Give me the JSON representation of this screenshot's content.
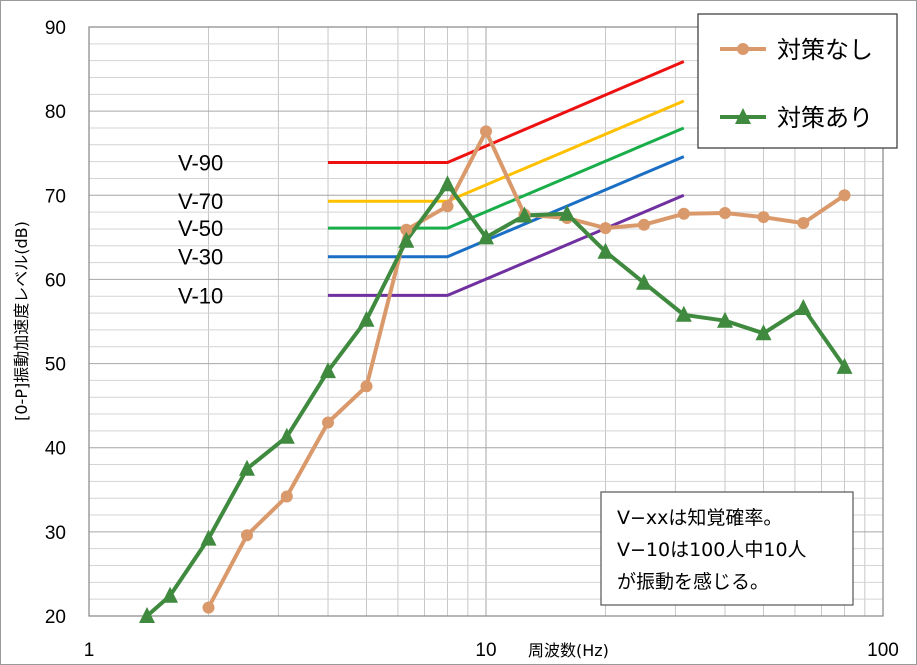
{
  "chart_data": {
    "type": "line",
    "x_scale": "log",
    "xlim": [
      1,
      100
    ],
    "ylim": [
      20,
      90
    ],
    "xlabel": "周波数(Hz)",
    "ylabel": "[0-P]振動加速度レベル(dB)",
    "x_ticks": [
      "1",
      "10",
      "100"
    ],
    "y_ticks": [
      "20",
      "30",
      "40",
      "50",
      "60",
      "70",
      "80",
      "90"
    ],
    "grid": true,
    "legend_position": "top-right",
    "series": [
      {
        "name": "対策なし",
        "color": "#d9996b",
        "marker": "circle",
        "x": [
          2,
          2.5,
          3.15,
          4,
          5,
          6.3,
          8,
          10,
          12.5,
          16,
          20,
          25,
          31.5,
          40,
          50,
          63,
          80
        ],
        "y": [
          21.0,
          29.6,
          34.2,
          43.0,
          47.3,
          65.9,
          68.7,
          77.6,
          67.7,
          67.3,
          66.1,
          66.5,
          67.8,
          67.9,
          67.4,
          66.7,
          70.0
        ]
      },
      {
        "name": "対策あり",
        "color": "#3f8a3f",
        "marker": "triangle",
        "x": [
          1.4,
          1.6,
          2,
          2.5,
          3.15,
          4,
          5,
          6.3,
          8,
          10,
          12.5,
          16,
          20,
          25,
          31.5,
          40,
          50,
          63,
          80
        ],
        "y": [
          20.0,
          22.4,
          29.2,
          37.5,
          41.3,
          49.1,
          55.2,
          64.6,
          71.3,
          65.0,
          67.6,
          67.8,
          63.3,
          59.6,
          55.8,
          55.1,
          53.6,
          56.6,
          49.6
        ]
      }
    ],
    "reference_lines": [
      {
        "label": "V-90",
        "color": "#ee1111",
        "x": [
          4,
          8,
          31.5
        ],
        "y": [
          73.9,
          73.9,
          85.9
        ]
      },
      {
        "label": "V-70",
        "color": "#ffc000",
        "x": [
          4,
          8,
          31.5
        ],
        "y": [
          69.3,
          69.3,
          81.2
        ]
      },
      {
        "label": "V-50",
        "color": "#1aae4a",
        "x": [
          4,
          8,
          31.5
        ],
        "y": [
          66.1,
          66.1,
          78.0
        ]
      },
      {
        "label": "V-30",
        "color": "#1a6fc4",
        "x": [
          4,
          8,
          31.5
        ],
        "y": [
          62.7,
          62.7,
          74.6
        ]
      },
      {
        "label": "V-10",
        "color": "#7030a0",
        "x": [
          4,
          8,
          31.5
        ],
        "y": [
          58.1,
          58.1,
          70.0
        ]
      }
    ],
    "annotation": [
      "V−xxは知覚確率。",
      "V−10は100人中10人",
      "が振動を感じる。"
    ]
  }
}
